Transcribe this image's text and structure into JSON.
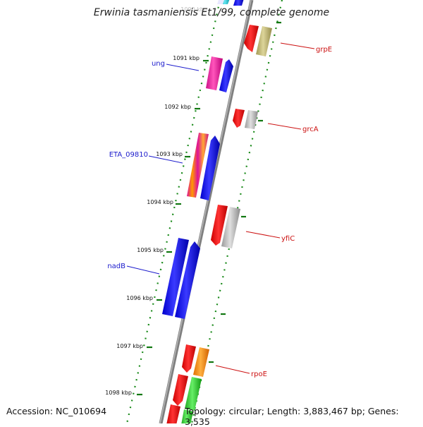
{
  "title": "Erwinia tasmaniensis Et1/99, complete genome",
  "accession": "Accession: NC_010694",
  "summary": "Topology: circular; Length: 3,883,467 bp; Genes: 3,535",
  "ticks": [
    {
      "label": "1091 kbp"
    },
    {
      "label": "1092 kbp"
    },
    {
      "label": "1093 kbp"
    },
    {
      "label": "1094 kbp"
    },
    {
      "label": "1095 kbp"
    },
    {
      "label": "1096 kbp"
    },
    {
      "label": "1097 kbp"
    },
    {
      "label": "1098 kbp"
    }
  ],
  "genes_left": [
    {
      "name": "ung",
      "color": "#1a1acc"
    },
    {
      "name": "ETA_09810",
      "color": "#1a1acc"
    },
    {
      "name": "nadB",
      "color": "#1a1acc"
    }
  ],
  "genes_right": [
    {
      "name": "grpE",
      "color": "#cc1111"
    },
    {
      "name": "grcA",
      "color": "#cc1111"
    },
    {
      "name": "yfiC",
      "color": "#cc1111"
    },
    {
      "name": "rpoE",
      "color": "#cc1111"
    }
  ]
}
